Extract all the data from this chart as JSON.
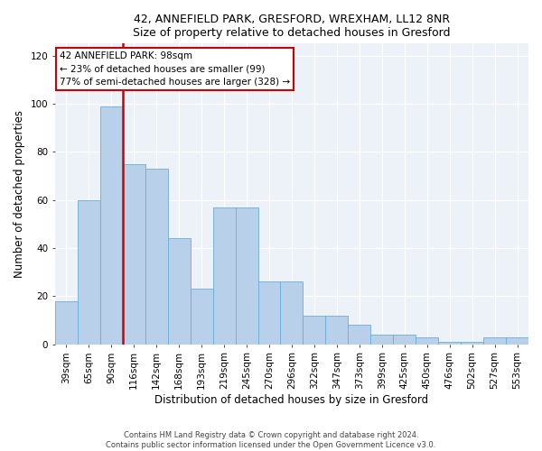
{
  "title1": "42, ANNEFIELD PARK, GRESFORD, WREXHAM, LL12 8NR",
  "title2": "Size of property relative to detached houses in Gresford",
  "xlabel": "Distribution of detached houses by size in Gresford",
  "ylabel": "Number of detached properties",
  "categories": [
    "39sqm",
    "65sqm",
    "90sqm",
    "116sqm",
    "142sqm",
    "168sqm",
    "193sqm",
    "219sqm",
    "245sqm",
    "270sqm",
    "296sqm",
    "322sqm",
    "347sqm",
    "373sqm",
    "399sqm",
    "425sqm",
    "450sqm",
    "476sqm",
    "502sqm",
    "527sqm",
    "553sqm"
  ],
  "values": [
    18,
    60,
    99,
    75,
    73,
    44,
    23,
    57,
    57,
    26,
    26,
    12,
    12,
    8,
    4,
    4,
    3,
    1,
    1,
    3,
    3
  ],
  "bar_color": "#b8d0ea",
  "bar_edge_color": "#6baed6",
  "vline_index": 2,
  "vline_color": "#cc0000",
  "ylim": [
    0,
    125
  ],
  "yticks": [
    0,
    20,
    40,
    60,
    80,
    100,
    120
  ],
  "annotation_text": "42 ANNEFIELD PARK: 98sqm\n← 23% of detached houses are smaller (99)\n77% of semi-detached houses are larger (328) →",
  "annotation_box_facecolor": "#ffffff",
  "annotation_box_edgecolor": "#cc0000",
  "footer_line1": "Contains HM Land Registry data © Crown copyright and database right 2024.",
  "footer_line2": "Contains public sector information licensed under the Open Government Licence v3.0.",
  "bg_color": "#edf2f9"
}
